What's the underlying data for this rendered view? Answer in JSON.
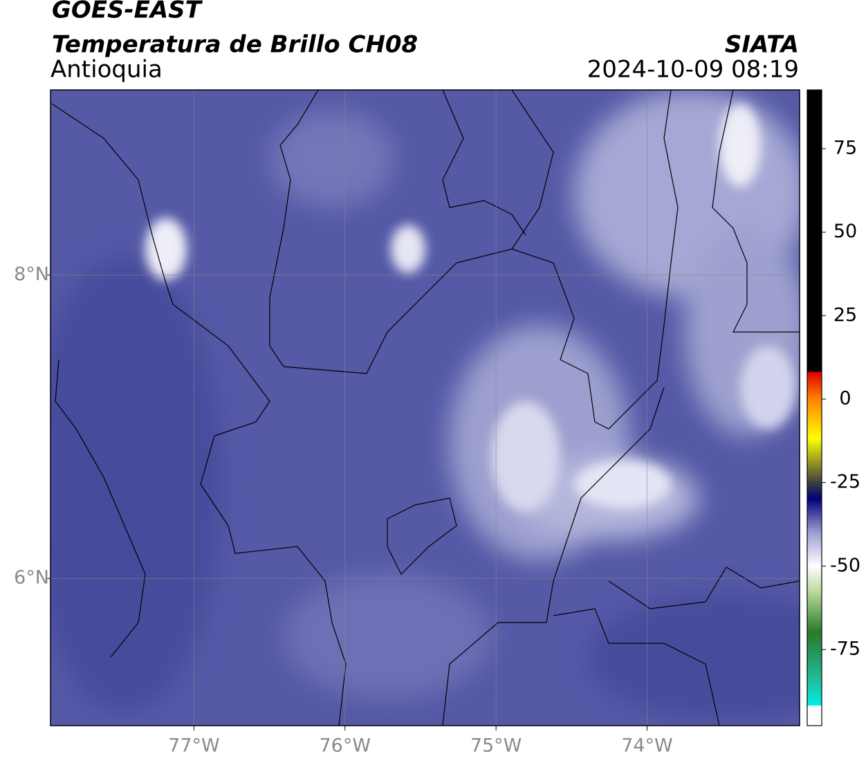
{
  "chart_data": {
    "type": "map",
    "title": "GOES-EAST",
    "subtitle": "Temperatura de Brillo CH08",
    "region": "Antioquia",
    "agency": "SIATA",
    "datetime": "2024-10-09 08:19",
    "xlim": [
      -77.95,
      -72.99
    ],
    "ylim": [
      5.03,
      9.22
    ],
    "xticks": [
      {
        "value": -77,
        "label": "77°W"
      },
      {
        "value": -76,
        "label": "76°W"
      },
      {
        "value": -75,
        "label": "75°W"
      },
      {
        "value": -74,
        "label": "74°W"
      }
    ],
    "yticks": [
      {
        "value": 6,
        "label": "6°N"
      },
      {
        "value": 8,
        "label": "8°N"
      }
    ],
    "grid": true,
    "colorbar": {
      "lim": [
        -97.8,
        92.6
      ],
      "ticks": [
        75,
        50,
        25,
        0,
        -25,
        -50,
        -75
      ]
    }
  }
}
